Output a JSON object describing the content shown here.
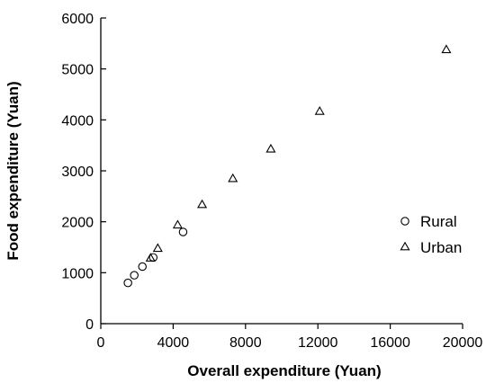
{
  "chart_data": {
    "type": "scatter",
    "title": "",
    "xlabel": "Overall expenditure (Yuan)",
    "ylabel": "Food expenditure (Yuan)",
    "xlim": [
      0,
      20000
    ],
    "ylim": [
      0,
      6000
    ],
    "xticks": [
      0,
      4000,
      8000,
      12000,
      16000,
      20000
    ],
    "yticks": [
      0,
      1000,
      2000,
      3000,
      4000,
      5000,
      6000
    ],
    "grid": false,
    "legend_position": "right",
    "series": [
      {
        "name": "Rural",
        "marker": "circle",
        "points": [
          {
            "x": 1500,
            "y": 800
          },
          {
            "x": 1850,
            "y": 950
          },
          {
            "x": 2300,
            "y": 1120
          },
          {
            "x": 2900,
            "y": 1300
          },
          {
            "x": 4550,
            "y": 1800
          }
        ]
      },
      {
        "name": "Urban",
        "marker": "triangle",
        "points": [
          {
            "x": 2750,
            "y": 1290
          },
          {
            "x": 3150,
            "y": 1480
          },
          {
            "x": 4250,
            "y": 1940
          },
          {
            "x": 5600,
            "y": 2340
          },
          {
            "x": 7300,
            "y": 2850
          },
          {
            "x": 9400,
            "y": 3430
          },
          {
            "x": 12100,
            "y": 4170
          },
          {
            "x": 19100,
            "y": 5380
          }
        ]
      }
    ]
  }
}
